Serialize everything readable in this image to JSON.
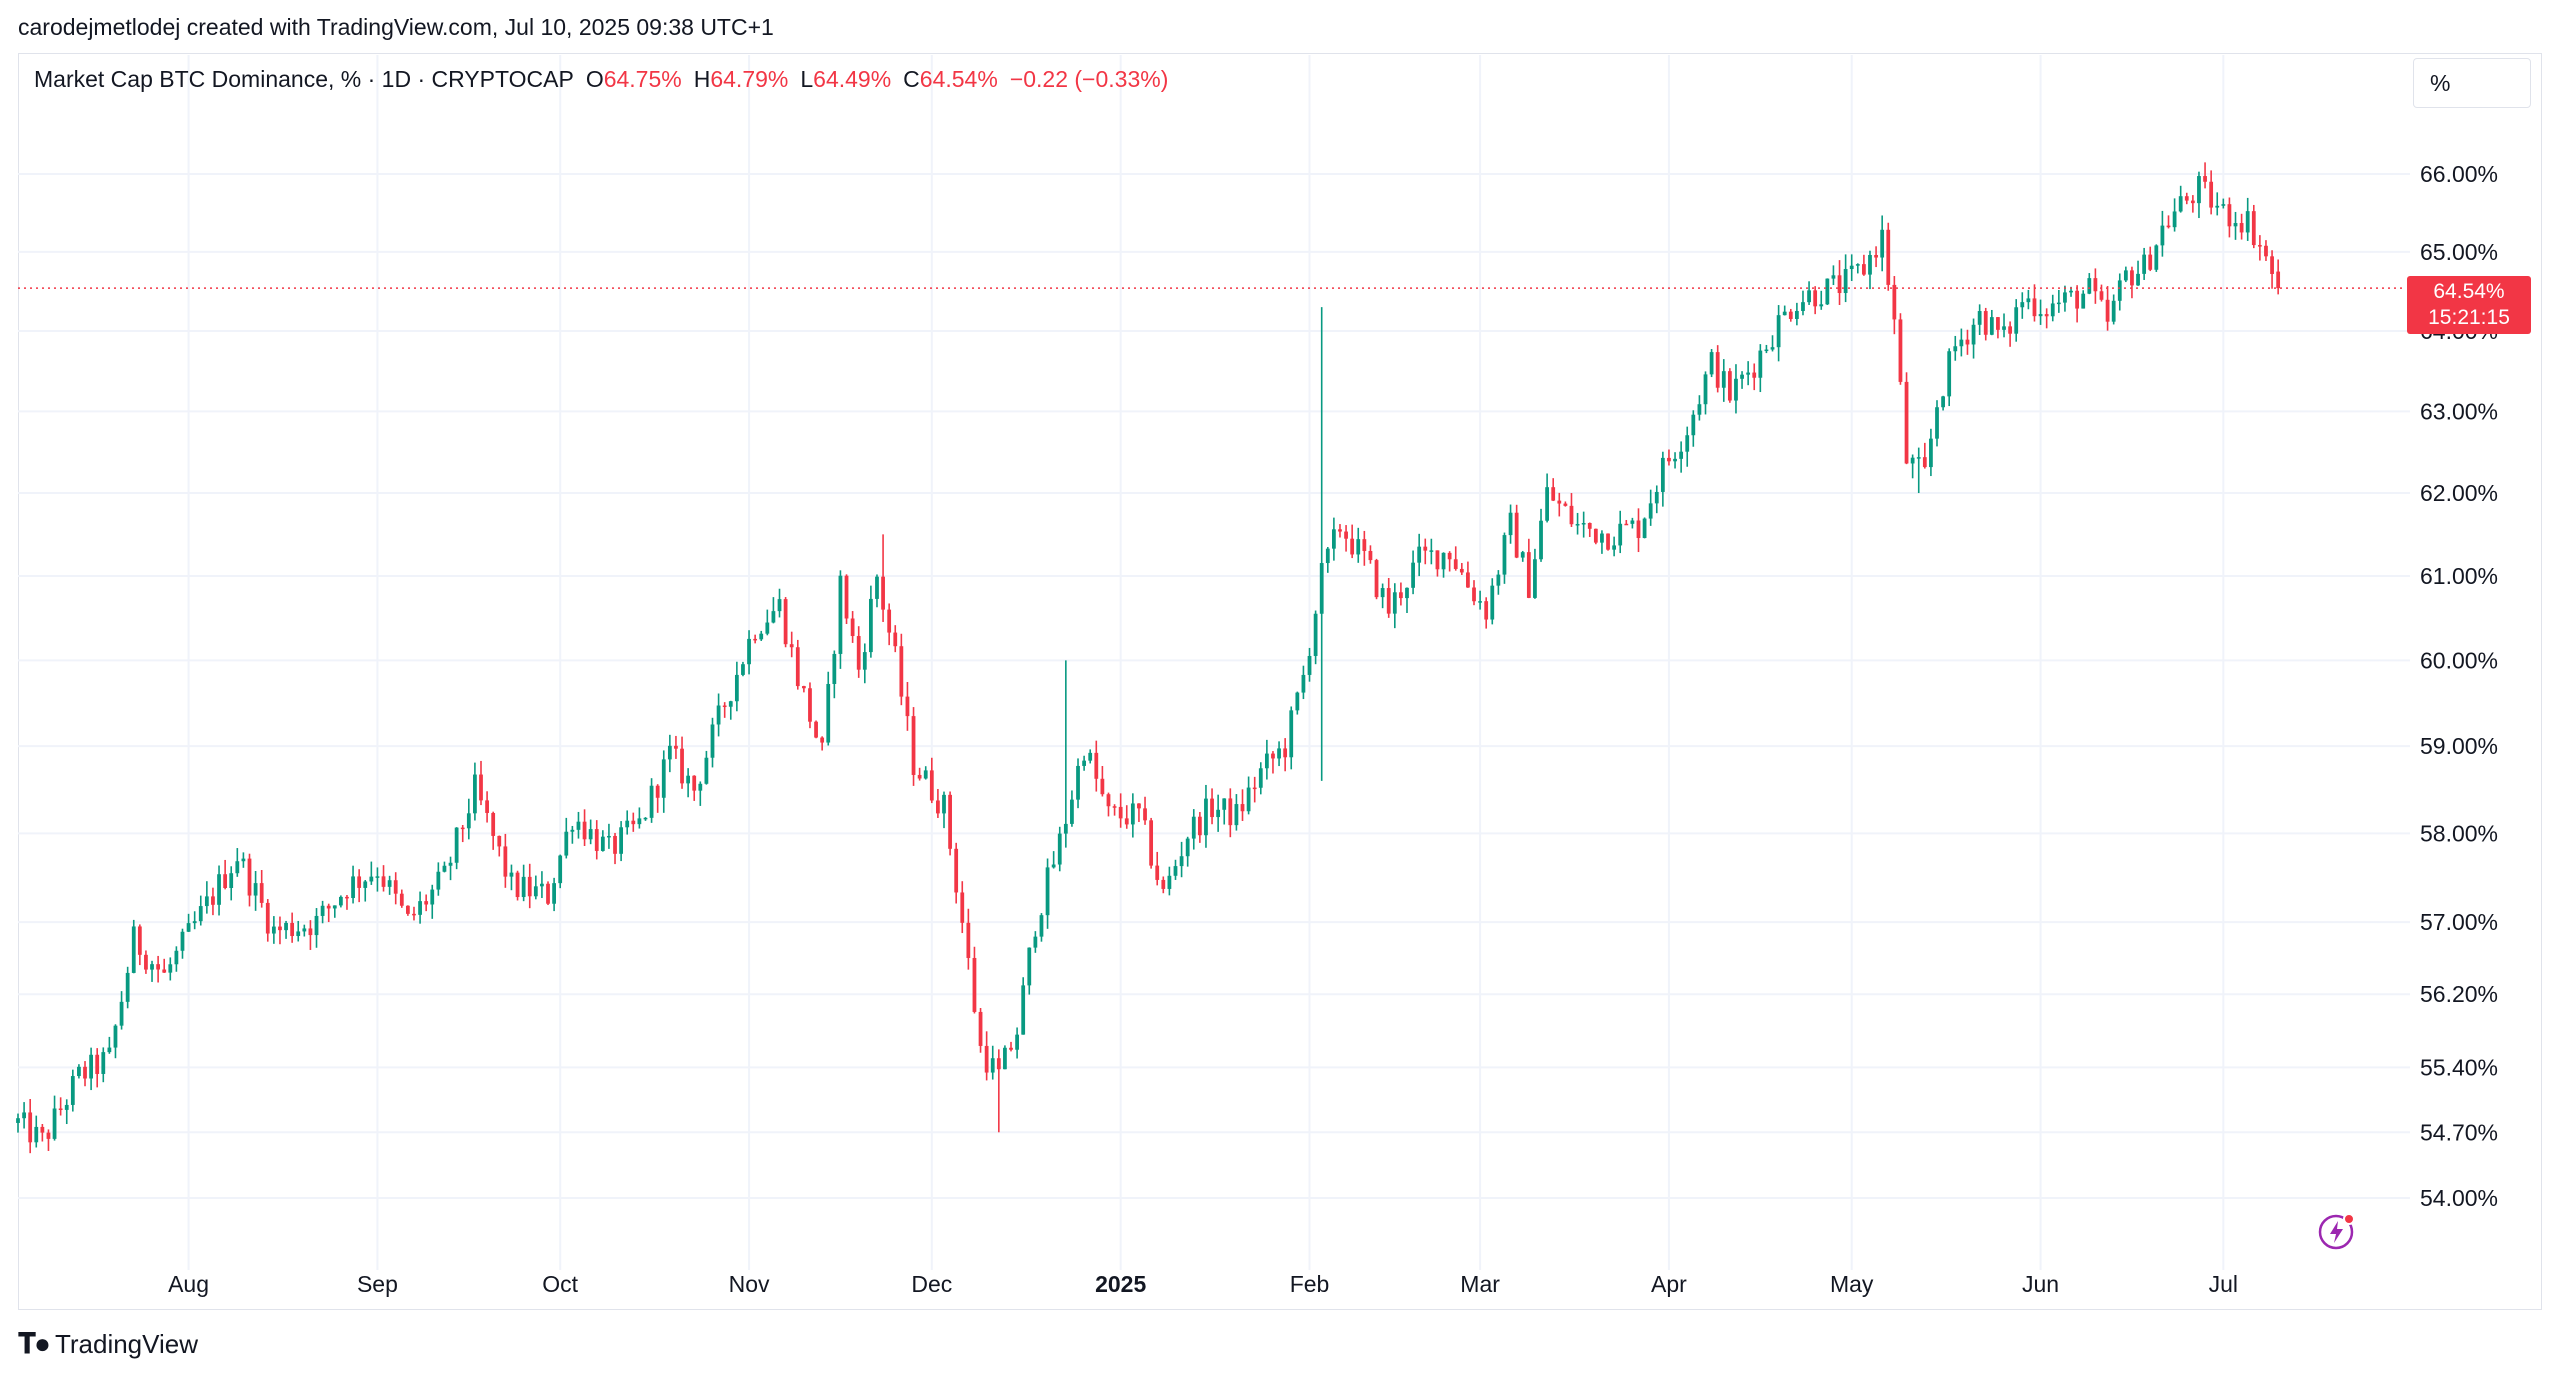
{
  "header": {
    "attribution": "carodejmetlodej created with TradingView.com, Jul 10, 2025 09:38 UTC+1"
  },
  "legend": {
    "symbol": "Market Cap BTC Dominance, % · 1D · CRYPTOCAP",
    "open_label": "O",
    "open": "64.75%",
    "high_label": "H",
    "high": "64.79%",
    "low_label": "L",
    "low": "64.49%",
    "close_label": "C",
    "close": "64.54%",
    "change": "−0.22 (−0.33%)"
  },
  "scale_button": {
    "label": "%"
  },
  "price_badge": {
    "price": "64.54%",
    "countdown": "15:21:15"
  },
  "footer": {
    "brand": "TradingView"
  },
  "colors": {
    "up": "#089981",
    "down": "#f23645",
    "grid": "#f0f3fa",
    "text": "#131722",
    "bolt": "#9c27b0"
  },
  "icons": [
    "tradingview-logo-icon",
    "lightning-bolt-icon"
  ],
  "chart_data": {
    "type": "candlestick",
    "title": "Market Cap BTC Dominance, % · 1D · CRYPTOCAP",
    "ylabel": "",
    "xlabel": "",
    "ylim": [
      53.4,
      66.6
    ],
    "y_scale": "log",
    "x_range": [
      "2024-07-04",
      "2025-07-30"
    ],
    "current_price": 64.54,
    "y_ticks": [
      {
        "value": 54.0,
        "label": "54.00%"
      },
      {
        "value": 54.7,
        "label": "54.70%"
      },
      {
        "value": 55.4,
        "label": "55.40%"
      },
      {
        "value": 56.2,
        "label": "56.20%"
      },
      {
        "value": 57.0,
        "label": "57.00%"
      },
      {
        "value": 58.0,
        "label": "58.00%"
      },
      {
        "value": 59.0,
        "label": "59.00%"
      },
      {
        "value": 60.0,
        "label": "60.00%"
      },
      {
        "value": 61.0,
        "label": "61.00%"
      },
      {
        "value": 62.0,
        "label": "62.00%"
      },
      {
        "value": 63.0,
        "label": "63.00%"
      },
      {
        "value": 64.0,
        "label": "64.00%"
      },
      {
        "value": 65.0,
        "label": "65.00%"
      },
      {
        "value": 66.0,
        "label": "66.00%"
      }
    ],
    "x_ticks": [
      {
        "date": "2024-08-01",
        "label": "Aug",
        "bold": false
      },
      {
        "date": "2024-09-01",
        "label": "Sep",
        "bold": false
      },
      {
        "date": "2024-10-01",
        "label": "Oct",
        "bold": false
      },
      {
        "date": "2024-11-01",
        "label": "Nov",
        "bold": false
      },
      {
        "date": "2024-12-01",
        "label": "Dec",
        "bold": false
      },
      {
        "date": "2025-01-01",
        "label": "2025",
        "bold": true
      },
      {
        "date": "2025-02-01",
        "label": "Feb",
        "bold": false
      },
      {
        "date": "2025-03-01",
        "label": "Mar",
        "bold": false
      },
      {
        "date": "2025-04-01",
        "label": "Apr",
        "bold": false
      },
      {
        "date": "2025-05-01",
        "label": "May",
        "bold": false
      },
      {
        "date": "2025-06-01",
        "label": "Jun",
        "bold": false
      },
      {
        "date": "2025-07-01",
        "label": "Jul",
        "bold": false
      }
    ],
    "anchors": [
      [
        "2024-07-04",
        54.8
      ],
      [
        "2024-07-08",
        54.6
      ],
      [
        "2024-07-14",
        55.3
      ],
      [
        "2024-07-19",
        55.5
      ],
      [
        "2024-07-23",
        56.8
      ],
      [
        "2024-07-28",
        56.4
      ],
      [
        "2024-08-05",
        57.3
      ],
      [
        "2024-08-09",
        57.75
      ],
      [
        "2024-08-15",
        56.9
      ],
      [
        "2024-08-22",
        57.0
      ],
      [
        "2024-08-27",
        57.4
      ],
      [
        "2024-09-01",
        57.6
      ],
      [
        "2024-09-06",
        57.0
      ],
      [
        "2024-09-12",
        57.5
      ],
      [
        "2024-09-17",
        58.5
      ],
      [
        "2024-09-23",
        57.4
      ],
      [
        "2024-09-29",
        57.3
      ],
      [
        "2024-10-03",
        58.2
      ],
      [
        "2024-10-09",
        57.8
      ],
      [
        "2024-10-14",
        58.1
      ],
      [
        "2024-10-19",
        58.9
      ],
      [
        "2024-10-23",
        58.5
      ],
      [
        "2024-10-28",
        59.5
      ],
      [
        "2024-11-02",
        60.4
      ],
      [
        "2024-11-06",
        60.65
      ],
      [
        "2024-11-09",
        59.8
      ],
      [
        "2024-11-13",
        58.9
      ],
      [
        "2024-11-16",
        60.9
      ],
      [
        "2024-11-19",
        59.9
      ],
      [
        "2024-11-22",
        61.0
      ],
      [
        "2024-11-25",
        60.0
      ],
      [
        "2024-11-28",
        58.8
      ],
      [
        "2024-12-03",
        58.3
      ],
      [
        "2024-12-06",
        57.0
      ],
      [
        "2024-12-09",
        55.6
      ],
      [
        "2024-12-12",
        55.3
      ],
      [
        "2024-12-15",
        55.8
      ],
      [
        "2024-12-18",
        57.0
      ],
      [
        "2024-12-22",
        57.9
      ],
      [
        "2024-12-26",
        59.0
      ],
      [
        "2024-12-30",
        58.2
      ],
      [
        "2025-01-04",
        58.2
      ],
      [
        "2025-01-08",
        57.3
      ],
      [
        "2025-01-12",
        58.0
      ],
      [
        "2025-01-16",
        58.3
      ],
      [
        "2025-01-20",
        58.2
      ],
      [
        "2025-01-24",
        58.7
      ],
      [
        "2025-01-28",
        59.0
      ],
      [
        "2025-01-31",
        59.8
      ],
      [
        "2025-02-03",
        61.0
      ],
      [
        "2025-02-06",
        61.6
      ],
      [
        "2025-02-10",
        61.2
      ],
      [
        "2025-02-14",
        60.6
      ],
      [
        "2025-02-19",
        61.2
      ],
      [
        "2025-02-24",
        61.3
      ],
      [
        "2025-02-27",
        60.9
      ],
      [
        "2025-03-02",
        60.6
      ],
      [
        "2025-03-06",
        61.6
      ],
      [
        "2025-03-09",
        60.9
      ],
      [
        "2025-03-12",
        62.0
      ],
      [
        "2025-03-17",
        61.6
      ],
      [
        "2025-03-22",
        61.5
      ],
      [
        "2025-03-27",
        61.6
      ],
      [
        "2025-03-31",
        62.3
      ],
      [
        "2025-04-04",
        62.8
      ],
      [
        "2025-04-08",
        63.6
      ],
      [
        "2025-04-11",
        63.2
      ],
      [
        "2025-04-15",
        63.6
      ],
      [
        "2025-04-19",
        64.1
      ],
      [
        "2025-04-22",
        64.4
      ],
      [
        "2025-04-26",
        64.5
      ],
      [
        "2025-04-30",
        64.6
      ],
      [
        "2025-05-03",
        64.8
      ],
      [
        "2025-05-06",
        65.2
      ],
      [
        "2025-05-08",
        64.1
      ],
      [
        "2025-05-10",
        62.4
      ],
      [
        "2025-05-13",
        62.2
      ],
      [
        "2025-05-15",
        63.1
      ],
      [
        "2025-05-18",
        63.8
      ],
      [
        "2025-05-22",
        64.2
      ],
      [
        "2025-05-26",
        63.9
      ],
      [
        "2025-05-29",
        64.4
      ],
      [
        "2025-06-02",
        64.3
      ],
      [
        "2025-06-06",
        64.4
      ],
      [
        "2025-06-09",
        64.5
      ],
      [
        "2025-06-12",
        64.1
      ],
      [
        "2025-06-15",
        64.7
      ],
      [
        "2025-06-18",
        64.8
      ],
      [
        "2025-06-21",
        65.3
      ],
      [
        "2025-06-24",
        65.6
      ],
      [
        "2025-06-27",
        65.8
      ],
      [
        "2025-07-01",
        65.5
      ],
      [
        "2025-07-05",
        65.4
      ],
      [
        "2025-07-07",
        65.1
      ],
      [
        "2025-07-10",
        64.54
      ]
    ],
    "spikes": [
      {
        "date": "2024-11-23",
        "high": 61.5
      },
      {
        "date": "2024-12-12",
        "low": 54.7
      },
      {
        "date": "2024-12-23",
        "high": 60.0
      },
      {
        "date": "2025-02-03",
        "high": 64.3,
        "low": 58.6
      },
      {
        "date": "2025-05-12",
        "low": 62.0
      }
    ]
  }
}
